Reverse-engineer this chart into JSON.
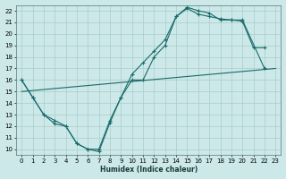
{
  "xlabel": "Humidex (Indice chaleur)",
  "background_color": "#cce8e8",
  "grid_color": "#aacccc",
  "line_color": "#1a6b6b",
  "xlim": [
    -0.5,
    23.5
  ],
  "ylim": [
    9.5,
    22.5
  ],
  "xticks": [
    0,
    1,
    2,
    3,
    4,
    5,
    6,
    7,
    8,
    9,
    10,
    11,
    12,
    13,
    14,
    15,
    16,
    17,
    18,
    19,
    20,
    21,
    22,
    23
  ],
  "yticks": [
    10,
    11,
    12,
    13,
    14,
    15,
    16,
    17,
    18,
    19,
    20,
    21,
    22
  ],
  "line1_x": [
    0,
    1,
    2,
    3,
    4,
    5,
    6,
    7,
    8,
    9,
    10,
    11,
    12,
    13,
    14,
    15,
    16,
    17,
    18,
    19,
    20,
    22
  ],
  "line1_y": [
    16,
    14.5,
    13,
    12.2,
    12,
    10.5,
    10,
    10,
    12.5,
    14.5,
    16,
    16,
    18,
    19,
    21.5,
    22.3,
    22,
    21.8,
    21.2,
    21.2,
    21.2,
    17
  ],
  "line2_x": [
    0,
    1,
    2,
    3,
    4,
    5,
    6,
    7,
    8,
    9,
    10,
    11,
    12,
    13,
    14,
    15,
    16,
    17,
    18,
    19,
    20,
    21,
    22
  ],
  "line2_y": [
    16,
    14.5,
    13,
    12.5,
    12,
    10.5,
    10,
    9.8,
    12.3,
    14.5,
    16.5,
    17.5,
    18.5,
    19.5,
    21.5,
    22.2,
    21.7,
    21.5,
    21.3,
    21.2,
    21.1,
    18.8,
    18.8
  ],
  "line3_x": [
    0,
    23
  ],
  "line3_y": [
    15,
    17
  ]
}
